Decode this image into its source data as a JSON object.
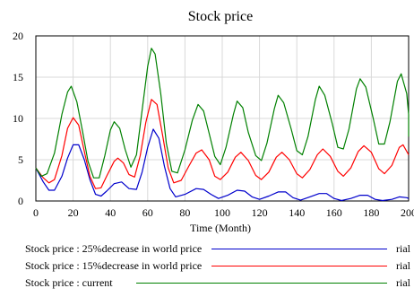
{
  "chart_data": {
    "type": "line",
    "title": "Stock price",
    "xlabel": "Time (Month)",
    "ylabel": "",
    "xlim": [
      0,
      200
    ],
    "ylim": [
      0,
      20
    ],
    "xticks": [
      0,
      20,
      40,
      60,
      80,
      100,
      120,
      140,
      160,
      180,
      200
    ],
    "yticks": [
      0,
      5,
      10,
      15,
      20
    ],
    "grid": true,
    "legend_position": "bottom",
    "unit": "rial",
    "series": [
      {
        "name": "Stock price : 25%decrease in world price",
        "color": "#0000cc",
        "points": [
          [
            0,
            4
          ],
          [
            4,
            2.3
          ],
          [
            7,
            1.3
          ],
          [
            10,
            1.3
          ],
          [
            14,
            3
          ],
          [
            17,
            5.2
          ],
          [
            20,
            6.8
          ],
          [
            23,
            6.8
          ],
          [
            26,
            5
          ],
          [
            29,
            2.6
          ],
          [
            32,
            0.8
          ],
          [
            35,
            0.6
          ],
          [
            38,
            1.2
          ],
          [
            42,
            2.1
          ],
          [
            46,
            2.3
          ],
          [
            50,
            1.5
          ],
          [
            54,
            1.4
          ],
          [
            57,
            3.5
          ],
          [
            60,
            6.5
          ],
          [
            63,
            8.7
          ],
          [
            66,
            7.6
          ],
          [
            69,
            4.2
          ],
          [
            72,
            1.5
          ],
          [
            75,
            0.5
          ],
          [
            80,
            0.8
          ],
          [
            86,
            1.5
          ],
          [
            90,
            1.4
          ],
          [
            94,
            0.8
          ],
          [
            98,
            0.3
          ],
          [
            103,
            0.7
          ],
          [
            108,
            1.3
          ],
          [
            112,
            1.2
          ],
          [
            116,
            0.5
          ],
          [
            120,
            0.2
          ],
          [
            125,
            0.6
          ],
          [
            130,
            1.1
          ],
          [
            134,
            1.1
          ],
          [
            138,
            0.4
          ],
          [
            142,
            0.1
          ],
          [
            147,
            0.5
          ],
          [
            152,
            0.9
          ],
          [
            156,
            0.9
          ],
          [
            160,
            0.3
          ],
          [
            164,
            0.05
          ],
          [
            169,
            0.3
          ],
          [
            174,
            0.7
          ],
          [
            178,
            0.7
          ],
          [
            182,
            0.2
          ],
          [
            186,
            0.05
          ],
          [
            191,
            0.2
          ],
          [
            195,
            0.5
          ],
          [
            199,
            0.4
          ],
          [
            200,
            0.3
          ]
        ]
      },
      {
        "name": "Stock price : 15%decrease in world price",
        "color": "#ff0000",
        "points": [
          [
            0,
            4
          ],
          [
            4,
            2.8
          ],
          [
            7,
            2.2
          ],
          [
            10,
            2.6
          ],
          [
            14,
            5.5
          ],
          [
            17,
            8.8
          ],
          [
            20,
            10.1
          ],
          [
            23,
            9.2
          ],
          [
            26,
            6
          ],
          [
            29,
            3
          ],
          [
            32,
            1.5
          ],
          [
            35,
            1.6
          ],
          [
            38,
            3
          ],
          [
            42,
            4.8
          ],
          [
            44,
            5.2
          ],
          [
            47,
            4.6
          ],
          [
            50,
            3.2
          ],
          [
            53,
            2.9
          ],
          [
            56,
            5.5
          ],
          [
            59,
            9.5
          ],
          [
            62,
            12.3
          ],
          [
            65,
            11.7
          ],
          [
            68,
            8
          ],
          [
            71,
            4
          ],
          [
            74,
            2.2
          ],
          [
            78,
            2.5
          ],
          [
            82,
            4.2
          ],
          [
            86,
            5.8
          ],
          [
            89,
            6.2
          ],
          [
            93,
            5
          ],
          [
            96,
            3
          ],
          [
            99,
            2.6
          ],
          [
            103,
            3.5
          ],
          [
            107,
            5.3
          ],
          [
            110,
            5.9
          ],
          [
            114,
            4.9
          ],
          [
            118,
            3.1
          ],
          [
            121,
            2.6
          ],
          [
            125,
            3.5
          ],
          [
            129,
            5.3
          ],
          [
            132,
            5.9
          ],
          [
            136,
            5
          ],
          [
            140,
            3.3
          ],
          [
            143,
            2.8
          ],
          [
            147,
            3.8
          ],
          [
            151,
            5.6
          ],
          [
            154,
            6.3
          ],
          [
            158,
            5.4
          ],
          [
            162,
            3.6
          ],
          [
            165,
            3
          ],
          [
            169,
            4
          ],
          [
            173,
            6
          ],
          [
            176,
            6.7
          ],
          [
            180,
            5.9
          ],
          [
            184,
            3.9
          ],
          [
            187,
            3.3
          ],
          [
            191,
            4.3
          ],
          [
            195,
            6.5
          ],
          [
            197,
            6.8
          ],
          [
            200,
            5.6
          ]
        ]
      },
      {
        "name": "Stock price : current",
        "color": "#008000",
        "points": [
          [
            0,
            4
          ],
          [
            3,
            3
          ],
          [
            6,
            3.3
          ],
          [
            10,
            5.8
          ],
          [
            14,
            10.5
          ],
          [
            17,
            13.2
          ],
          [
            19,
            13.9
          ],
          [
            22,
            12
          ],
          [
            25,
            8.5
          ],
          [
            28,
            4.8
          ],
          [
            31,
            2.8
          ],
          [
            34,
            2.8
          ],
          [
            37,
            5.5
          ],
          [
            40,
            8.6
          ],
          [
            42,
            9.6
          ],
          [
            45,
            8.8
          ],
          [
            48,
            6.2
          ],
          [
            51,
            4.1
          ],
          [
            54,
            5.6
          ],
          [
            57,
            11
          ],
          [
            60,
            16.3
          ],
          [
            62,
            18.5
          ],
          [
            64,
            17.8
          ],
          [
            67,
            13
          ],
          [
            70,
            7
          ],
          [
            73,
            3.6
          ],
          [
            76,
            3.4
          ],
          [
            80,
            6.2
          ],
          [
            84,
            9.8
          ],
          [
            87,
            11.7
          ],
          [
            90,
            10.9
          ],
          [
            93,
            8.2
          ],
          [
            96,
            5.4
          ],
          [
            99,
            4.4
          ],
          [
            102,
            6.5
          ],
          [
            106,
            10.5
          ],
          [
            108,
            12.1
          ],
          [
            111,
            11.3
          ],
          [
            114,
            8.3
          ],
          [
            118,
            5.5
          ],
          [
            121,
            4.9
          ],
          [
            124,
            7
          ],
          [
            128,
            11.2
          ],
          [
            130,
            12.8
          ],
          [
            133,
            11.9
          ],
          [
            137,
            8.7
          ],
          [
            140,
            6.1
          ],
          [
            143,
            5.6
          ],
          [
            146,
            7.8
          ],
          [
            150,
            12.3
          ],
          [
            152,
            13.9
          ],
          [
            155,
            12.8
          ],
          [
            159,
            9.4
          ],
          [
            162,
            6.5
          ],
          [
            165,
            6.3
          ],
          [
            168,
            8.7
          ],
          [
            172,
            13.6
          ],
          [
            174,
            14.8
          ],
          [
            177,
            13.8
          ],
          [
            181,
            10
          ],
          [
            184,
            6.9
          ],
          [
            187,
            6.9
          ],
          [
            190,
            9.6
          ],
          [
            194,
            14.5
          ],
          [
            196,
            15.4
          ],
          [
            199,
            13
          ],
          [
            200,
            10.5
          ],
          [
            200,
            7.8
          ]
        ]
      }
    ]
  }
}
